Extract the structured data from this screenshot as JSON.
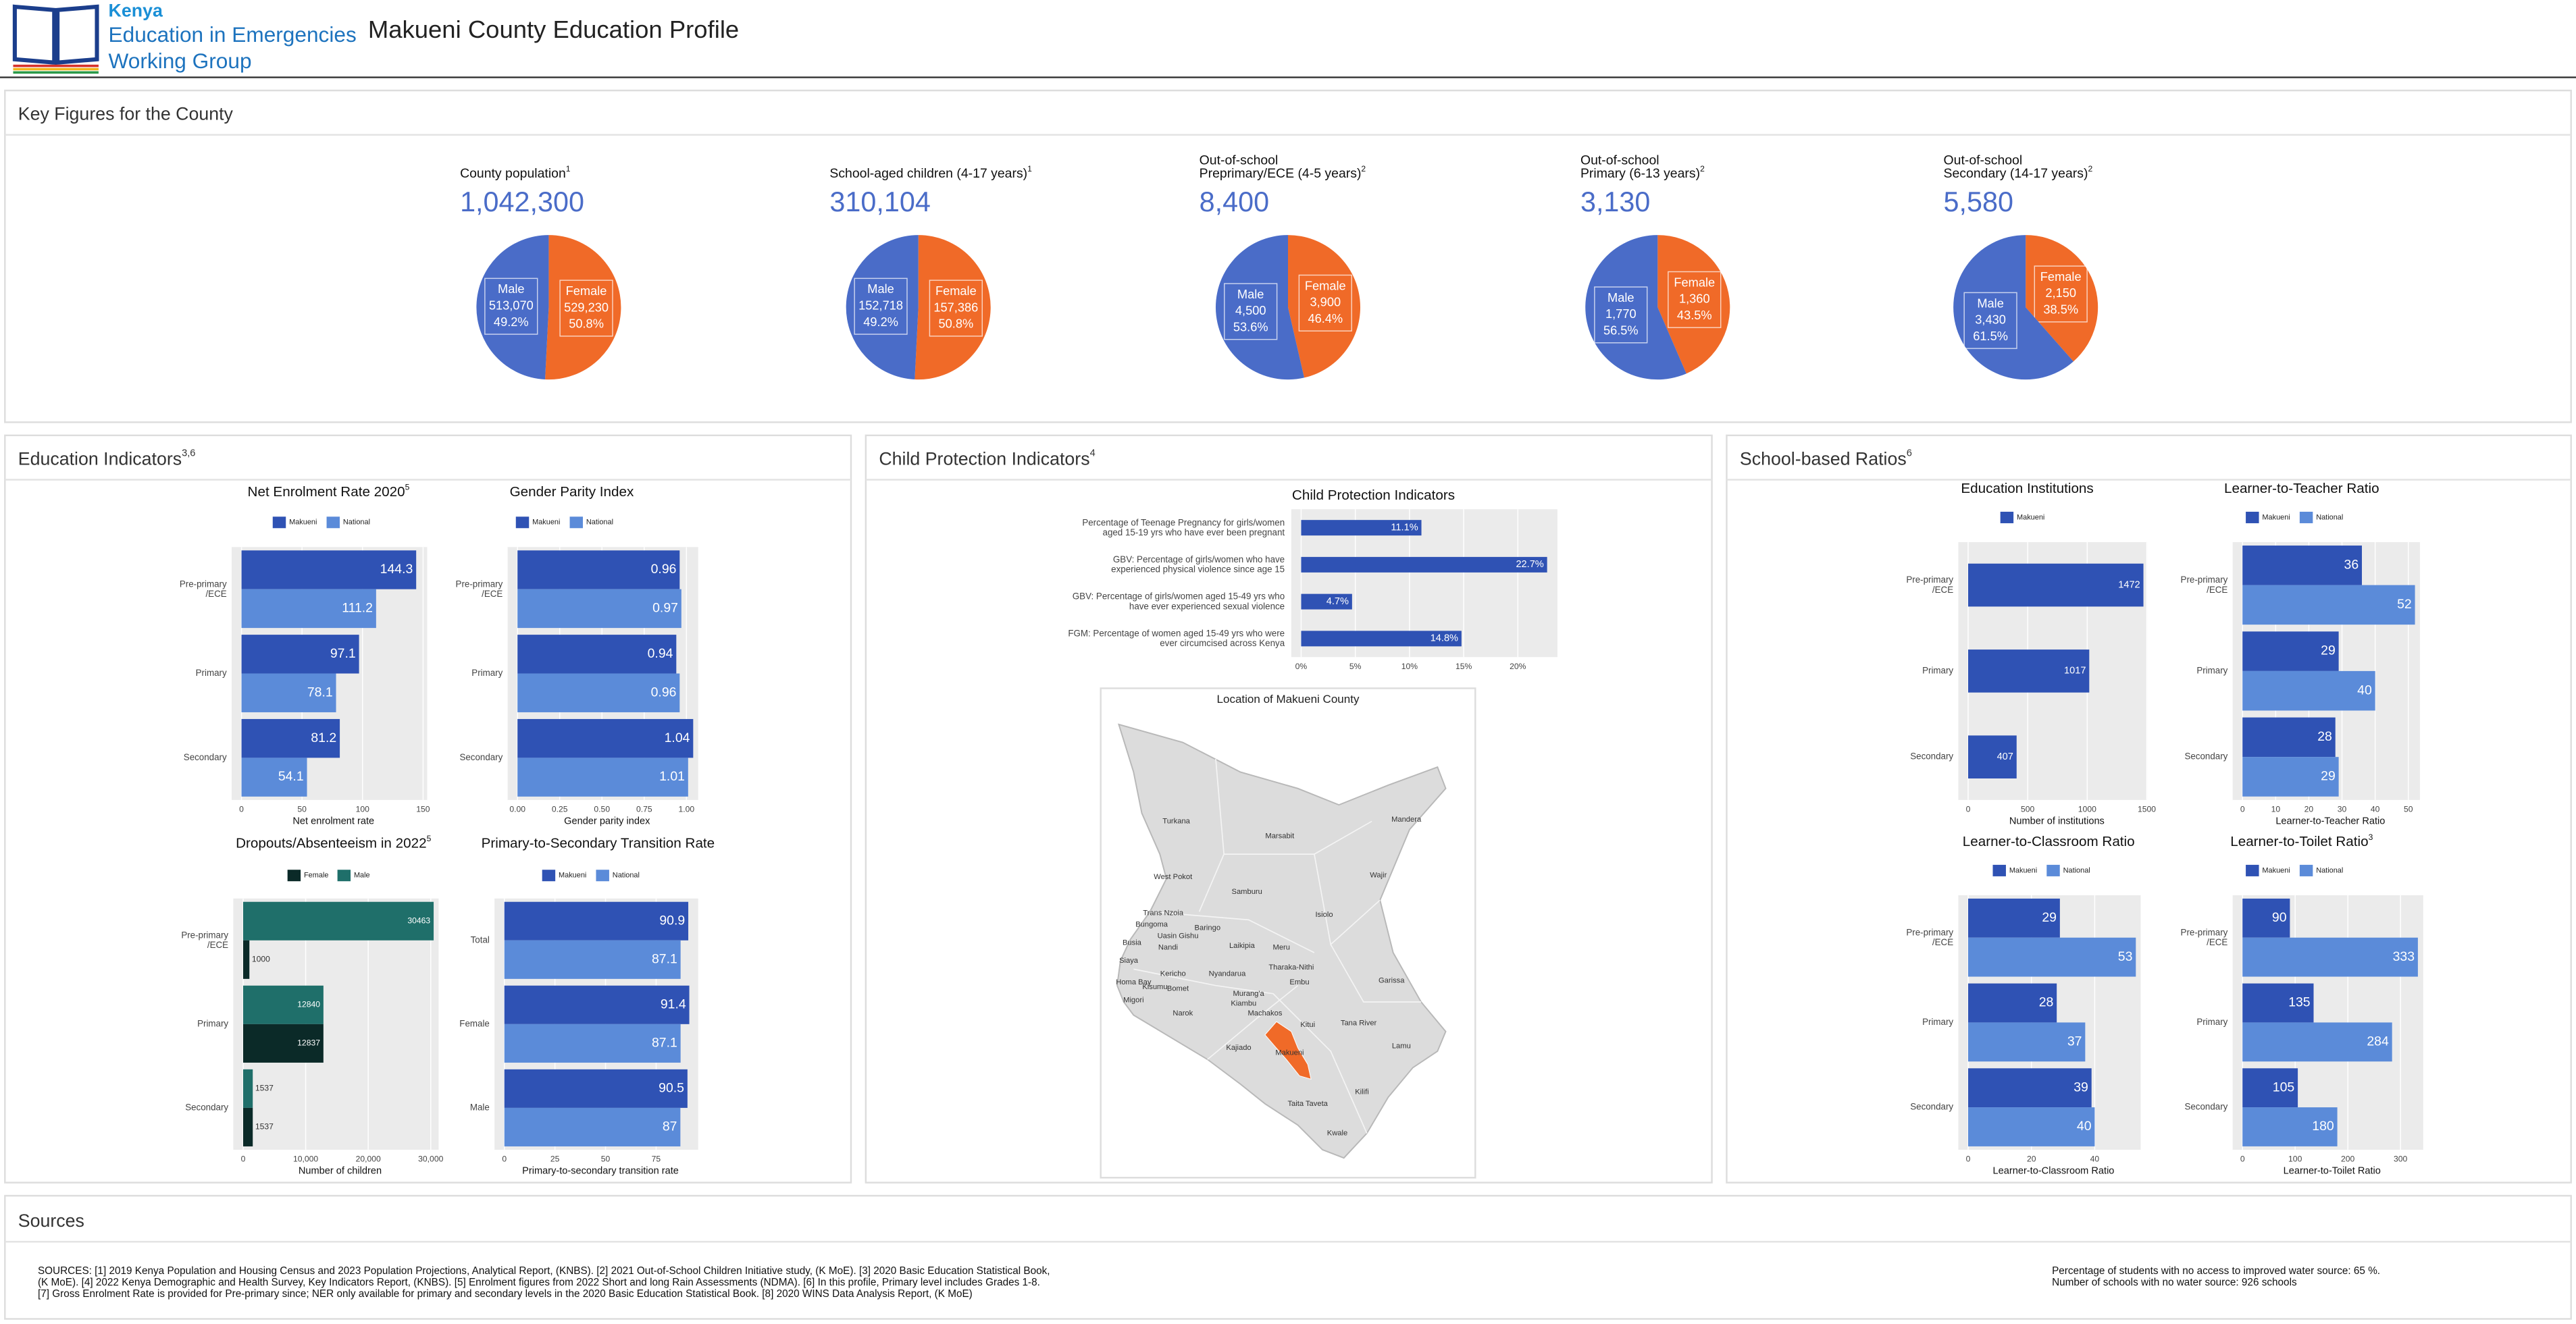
{
  "header": {
    "logo": [
      "Kenya",
      "Education in Emergencies",
      "Working Group"
    ],
    "title": "Makueni County Education Profile"
  },
  "sections": {
    "key_figures": "Key Figures for the County",
    "education": {
      "title": "Education Indicators",
      "sup": "3,6"
    },
    "protection": {
      "title": "Child Protection Indicators",
      "sup": "4"
    },
    "ratios": {
      "title": "School-based Ratios",
      "sup": "6"
    }
  },
  "chart_data": [
    {
      "type": "pie",
      "title": [
        "County population"
      ],
      "title_sup": "1",
      "total": "1,042,300",
      "categories": [
        "Male",
        "Female"
      ],
      "values": [
        513070,
        529230
      ],
      "value_labels": [
        "513,070",
        "529,230"
      ],
      "shares": [
        49.2,
        50.8
      ],
      "share_labels": [
        "49.2%",
        "50.8%"
      ],
      "colors": [
        "#4a6cc8",
        "#f06a28"
      ]
    },
    {
      "type": "pie",
      "title": [
        "School-aged children (4-17 years)"
      ],
      "title_sup": "1",
      "total": "310,104",
      "categories": [
        "Male",
        "Female"
      ],
      "values": [
        152718,
        157386
      ],
      "value_labels": [
        "152,718",
        "157,386"
      ],
      "shares": [
        49.2,
        50.8
      ],
      "share_labels": [
        "49.2%",
        "50.8%"
      ],
      "colors": [
        "#4a6cc8",
        "#f06a28"
      ]
    },
    {
      "type": "pie",
      "title": [
        "Out-of-school",
        "Preprimary/ECE (4-5 years)"
      ],
      "title_sup": "2",
      "total": "8,400",
      "categories": [
        "Male",
        "Female"
      ],
      "values": [
        4500,
        3900
      ],
      "value_labels": [
        "4,500",
        "3,900"
      ],
      "shares": [
        53.6,
        46.4
      ],
      "share_labels": [
        "53.6%",
        "46.4%"
      ],
      "colors": [
        "#4a6cc8",
        "#f06a28"
      ]
    },
    {
      "type": "pie",
      "title": [
        "Out-of-school",
        "Primary (6-13 years)"
      ],
      "title_sup": "2",
      "total": "3,130",
      "categories": [
        "Male",
        "Female"
      ],
      "values": [
        1770,
        1360
      ],
      "value_labels": [
        "1,770",
        "1,360"
      ],
      "shares": [
        56.5,
        43.5
      ],
      "share_labels": [
        "56.5%",
        "43.5%"
      ],
      "colors": [
        "#4a6cc8",
        "#f06a28"
      ]
    },
    {
      "type": "pie",
      "title": [
        "Out-of-school",
        "Secondary (14-17 years)"
      ],
      "title_sup": "2",
      "total": "5,580",
      "categories": [
        "Male",
        "Female"
      ],
      "values": [
        3430,
        2150
      ],
      "value_labels": [
        "3,430",
        "2,150"
      ],
      "shares": [
        61.5,
        38.5
      ],
      "share_labels": [
        "61.5%",
        "38.5%"
      ],
      "colors": [
        "#4a6cc8",
        "#f06a28"
      ]
    },
    {
      "type": "bar",
      "orientation": "horizontal",
      "title": "Net Enrolment Rate 2020",
      "title_sup": "5",
      "categories": [
        "Pre-primary\n/ECE",
        "Primary",
        "Secondary"
      ],
      "series": [
        {
          "name": "Makueni",
          "color": "#2f52b4",
          "values": [
            144.3,
            97.1,
            81.2
          ]
        },
        {
          "name": "National",
          "color": "#5b8bd9",
          "values": [
            111.2,
            78.1,
            54.1
          ]
        }
      ],
      "xlabel": "Net enrolment rate",
      "xlim": [
        0,
        152
      ],
      "xticks": [
        0,
        50,
        100,
        150
      ],
      "grid": true
    },
    {
      "type": "bar",
      "orientation": "horizontal",
      "title": "Gender Parity Index",
      "categories": [
        "Pre-primary\n/ECE",
        "Primary",
        "Secondary"
      ],
      "series": [
        {
          "name": "Makueni",
          "color": "#2f52b4",
          "values": [
            0.96,
            0.94,
            1.04
          ]
        },
        {
          "name": "National",
          "color": "#5b8bd9",
          "values": [
            0.97,
            0.96,
            1.01
          ]
        }
      ],
      "xlabel": "Gender parity index",
      "xlim": [
        0,
        1.06
      ],
      "xticks": [
        {
          "value": 0,
          "label": "0.00"
        },
        0.25,
        {
          "value": 0.5,
          "label": "0.50"
        },
        0.75,
        {
          "value": 1,
          "label": "1.00"
        }
      ],
      "grid": true
    },
    {
      "type": "bar",
      "orientation": "horizontal",
      "title": "Dropouts/Absenteeism in 2022",
      "title_sup": "5",
      "categories": [
        "Pre-primary\n/ECE",
        "Primary",
        "Secondary"
      ],
      "series": [
        {
          "name": "Female",
          "color": "#0b2a28",
          "values": [
            1000,
            12837,
            1537
          ]
        },
        {
          "name": "Male",
          "color": "#1f6f6a",
          "values": [
            30463,
            12840,
            1537
          ]
        }
      ],
      "xlabel": "Number of children",
      "xlim": [
        0,
        31000
      ],
      "xticks": [
        0,
        {
          "value": 10000,
          "label": "10,000"
        },
        {
          "value": 20000,
          "label": "20,000"
        },
        {
          "value": 30000,
          "label": "30,000"
        }
      ],
      "grid": true
    },
    {
      "type": "bar",
      "orientation": "horizontal",
      "title": "Primary-to-Secondary Transition Rate",
      "categories": [
        "Total",
        "Female",
        "Male"
      ],
      "series": [
        {
          "name": "Makueni",
          "color": "#2f52b4",
          "values": [
            90.9,
            91.4,
            90.5
          ]
        },
        {
          "name": "National",
          "color": "#5b8bd9",
          "values": [
            87.1,
            87.1,
            87
          ]
        }
      ],
      "xlabel": "Primary-to-secondary transition rate",
      "xlim": [
        0,
        95
      ],
      "xticks": [
        0,
        25,
        50,
        75
      ],
      "grid": true
    },
    {
      "type": "bar",
      "orientation": "horizontal",
      "title": "Child Protection Indicators",
      "categories": [
        "Percentage of Teenage Pregnancy for girls/women\naged 15-19 yrs who have ever been pregnant",
        "GBV: Percentage of girls/women who have\nexperienced physical violence since age 15",
        "GBV: Percentage of girls/women aged 15-49 yrs who\nhave ever experienced sexual violence",
        "FGM: Percentage of women aged 15-49 yrs who were\never circumcised across Kenya"
      ],
      "values": [
        11.1,
        22.7,
        4.7,
        14.8
      ],
      "value_labels": [
        "11.1%",
        "22.7%",
        "4.7%",
        "14.8%"
      ],
      "color": "#2f52b4",
      "xlim": [
        0,
        23.5
      ],
      "xticks": [
        {
          "value": 0,
          "label": "0%"
        },
        {
          "value": 5,
          "label": "5%"
        },
        {
          "value": 10,
          "label": "10%"
        },
        {
          "value": 15,
          "label": "15%"
        },
        {
          "value": 20,
          "label": "20%"
        }
      ],
      "grid": true
    },
    {
      "type": "bar",
      "orientation": "horizontal",
      "title": "Education Institutions",
      "categories": [
        "Pre-primary\n/ECE",
        "Primary",
        "Secondary"
      ],
      "series": [
        {
          "name": "Makueni",
          "color": "#2f52b4",
          "values": [
            1472,
            1017,
            407
          ]
        }
      ],
      "xlabel": "Number of institutions",
      "xlim": [
        0,
        1490
      ],
      "xticks": [
        0,
        500,
        1000,
        1500
      ],
      "grid": true
    },
    {
      "type": "bar",
      "orientation": "horizontal",
      "title": "Learner-to-Teacher Ratio",
      "categories": [
        "Pre-primary\n/ECE",
        "Primary",
        "Secondary"
      ],
      "series": [
        {
          "name": "Makueni",
          "color": "#2f52b4",
          "values": [
            36,
            29,
            28
          ]
        },
        {
          "name": "National",
          "color": "#5b8bd9",
          "values": [
            52,
            40,
            29
          ]
        }
      ],
      "xlabel": "Learner-to-Teacher Ratio",
      "xlim": [
        0,
        53
      ],
      "xticks": [
        0,
        10,
        20,
        30,
        40,
        50
      ],
      "grid": true
    },
    {
      "type": "bar",
      "orientation": "horizontal",
      "title": "Learner-to-Classroom Ratio",
      "categories": [
        "Pre-primary\n/ECE",
        "Primary",
        "Secondary"
      ],
      "series": [
        {
          "name": "Makueni",
          "color": "#2f52b4",
          "values": [
            29,
            28,
            39
          ]
        },
        {
          "name": "National",
          "color": "#5b8bd9",
          "values": [
            53,
            37,
            40
          ]
        }
      ],
      "xlabel": "Learner-to-Classroom Ratio",
      "xlim": [
        0,
        54
      ],
      "xticks": [
        0,
        20,
        40
      ],
      "grid": true
    },
    {
      "type": "bar",
      "orientation": "horizontal",
      "title": "Learner-to-Toilet Ratio",
      "title_sup": "3",
      "categories": [
        "Pre-primary\n/ECE",
        "Primary",
        "Secondary"
      ],
      "series": [
        {
          "name": "Makueni",
          "color": "#2f52b4",
          "values": [
            90,
            135,
            105
          ]
        },
        {
          "name": "National",
          "color": "#5b8bd9",
          "values": [
            333,
            284,
            180
          ]
        }
      ],
      "xlabel": "Learner-to-Toilet Ratio",
      "xlim": [
        0,
        340
      ],
      "xticks": [
        0,
        100,
        200,
        300
      ],
      "grid": true
    }
  ],
  "map": {
    "title": "Location of Makueni County",
    "labels": [
      "Turkana",
      "Marsabit",
      "Mandera",
      "Wajir",
      "West Pokot",
      "Samburu",
      "Isiolo",
      "Trans Nzoia",
      "Bungoma",
      "Baringo",
      "Uasin Gishu",
      "Busia",
      "Nandi",
      "Laikipia",
      "Meru",
      "Siaya",
      "Kericho",
      "Tharaka-Nithi",
      "Nyandarua",
      "Homa Bay",
      "Kisumu",
      "Bomet",
      "Migori",
      "Embu",
      "Garissa",
      "Murang'a",
      "Kiambu",
      "Narok",
      "Machakos",
      "Kitui",
      "Tana River",
      "Kajiado",
      "Lamu",
      "Makueni",
      "Kilifi",
      "Taita Taveta",
      "Kwale"
    ]
  },
  "sources": {
    "title": "Sources",
    "lines": [
      "SOURCES: [1] 2019 Kenya Population and Housing Census and 2023 Population Projections, Analytical Report, (KNBS). [2] 2021 Out-of-School Children Initiative study, (K MoE). [3] 2020 Basic Education Statistical Book,",
      "(K MoE). [4] 2022 Kenya Demographic and Health Survey, Key Indicators Report, (KNBS). [5] Enrolment figures from 2022 Short and long Rain Assessments (NDMA). [6] In this profile, Primary level includes Grades 1-8.",
      "[7] Gross Enrolment Rate is provided for Pre-primary since; NER only available for primary and secondary levels in the 2020 Basic Education Statistical Book. [8] 2020 WINS Data Analysis Report, (K MoE)"
    ],
    "notes": [
      "Percentage of students with no access to improved water source: 65 %.",
      "Number of schools with no water source: 926 schools"
    ]
  }
}
